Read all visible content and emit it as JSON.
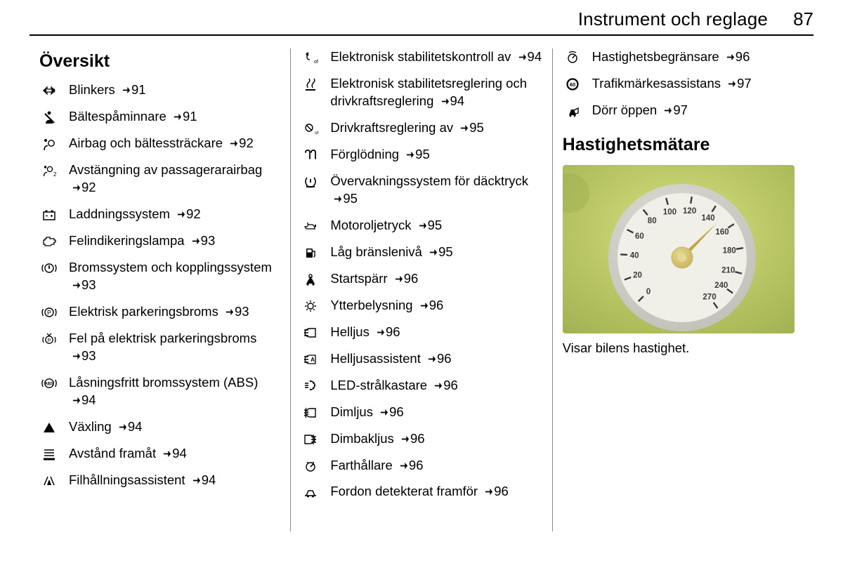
{
  "header": {
    "title": "Instrument och reglage",
    "page": "87"
  },
  "section_titles": {
    "overview": "Översikt",
    "speedometer": "Hastighetsmätare"
  },
  "speedometer_caption": "Visar bilens hastighet.",
  "ref_arrow_color": "#000000",
  "col1": [
    {
      "icon": "turn-signal",
      "text": "Blinkers",
      "page": "91"
    },
    {
      "icon": "seatbelt",
      "text": "Bältespåminnare",
      "page": "91"
    },
    {
      "icon": "airbag",
      "text": "Airbag och bältessträckare",
      "page": "92"
    },
    {
      "icon": "airbag-off",
      "text": "Avstängning av passagerarairbag",
      "page": "92"
    },
    {
      "icon": "battery",
      "text": "Laddningssystem",
      "page": "92"
    },
    {
      "icon": "engine",
      "text": "Felindikeringslampa",
      "page": "93"
    },
    {
      "icon": "brake-circle",
      "text": "Bromssystem och kopplingssystem",
      "page": "93"
    },
    {
      "icon": "epb",
      "text": "Elektrisk parkeringsbroms",
      "page": "93"
    },
    {
      "icon": "epb-fault",
      "text": "Fel på elektrisk parkeringsbroms",
      "page": "93"
    },
    {
      "icon": "abs",
      "text": "Låsningsfritt bromssystem (ABS)",
      "page": "94"
    },
    {
      "icon": "triangle-up",
      "text": "Växling",
      "page": "94"
    },
    {
      "icon": "distance",
      "text": "Avstånd framåt",
      "page": "94"
    },
    {
      "icon": "lane-assist",
      "text": "Filhållningsassistent",
      "page": "94"
    }
  ],
  "col2": [
    {
      "icon": "esc-off",
      "text": "Elektronisk stabilitetskontroll av",
      "page": "94"
    },
    {
      "icon": "esc",
      "text": "Elektronisk stabilitetsreglering och drivkraftsreglering",
      "page": "94"
    },
    {
      "icon": "tc-off",
      "text": "Drivkraftsreglering av",
      "page": "95"
    },
    {
      "icon": "preheat",
      "text": "Förglödning",
      "page": "95"
    },
    {
      "icon": "tpms",
      "text": "Övervakningssystem för däcktryck",
      "page": "95"
    },
    {
      "icon": "oil",
      "text": "Motoroljetryck",
      "page": "95"
    },
    {
      "icon": "fuel",
      "text": "Låg bränslenivå",
      "page": "95"
    },
    {
      "icon": "immobilizer",
      "text": "Startspärr",
      "page": "96"
    },
    {
      "icon": "ext-light",
      "text": "Ytterbelysning",
      "page": "96"
    },
    {
      "icon": "high-beam",
      "text": "Helljus",
      "page": "96"
    },
    {
      "icon": "high-beam-assist",
      "text": "Helljusassistent",
      "page": "96"
    },
    {
      "icon": "led",
      "text": "LED-strålkastare",
      "page": "96"
    },
    {
      "icon": "fog-front",
      "text": "Dimljus",
      "page": "96"
    },
    {
      "icon": "fog-rear",
      "text": "Dimbakljus",
      "page": "96"
    },
    {
      "icon": "cruise",
      "text": "Farthållare",
      "page": "96"
    },
    {
      "icon": "vehicle-ahead",
      "text": "Fordon detekterat framför",
      "page": "96"
    }
  ],
  "col3": [
    {
      "icon": "limiter",
      "text": "Hastighetsbegränsare",
      "page": "96"
    },
    {
      "icon": "sign-assist",
      "text": "Trafikmärkesassistans",
      "page": "97"
    },
    {
      "icon": "door-open",
      "text": "Dörr öppen",
      "page": "97"
    }
  ],
  "speedometer": {
    "bg_gradient_from": "#d8e080",
    "bg_gradient_to": "#a0b050",
    "dial_face": "#f0f0e8",
    "dial_rim_outer": "#dcdcd4",
    "dial_rim_inner": "#c0c0b8",
    "tick_color": "#3a3a3a",
    "tick_label_color": "#3a3a3a",
    "tick_fontsize": 11.5,
    "needle_color": "#bfa648",
    "hub_outer": "#c8b460",
    "hub_inner": "#e6d890",
    "ticks": [
      {
        "label": "0",
        "angle": 225
      },
      {
        "label": "20",
        "angle": 201
      },
      {
        "label": "40",
        "angle": 177
      },
      {
        "label": "60",
        "angle": 153
      },
      {
        "label": "80",
        "angle": 129
      },
      {
        "label": "100",
        "angle": 105
      },
      {
        "label": "120",
        "angle": 81
      },
      {
        "label": "140",
        "angle": 57
      },
      {
        "label": "160",
        "angle": 33
      },
      {
        "label": "180",
        "angle": 9
      },
      {
        "label": "210",
        "angle": -15
      },
      {
        "label": "240",
        "angle": -35
      },
      {
        "label": "270",
        "angle": -55
      }
    ],
    "needle_angle_deg": 45
  }
}
